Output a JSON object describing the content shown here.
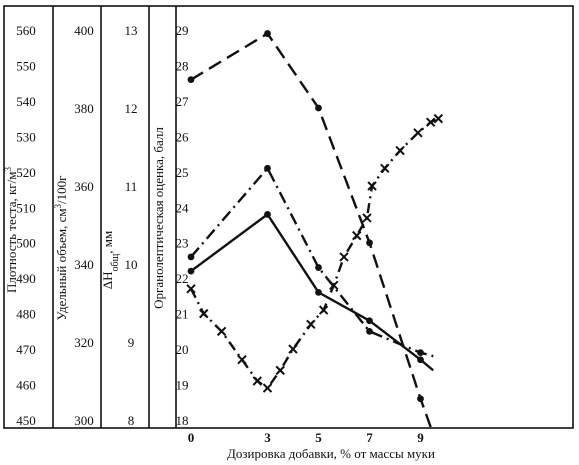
{
  "chart_data": {
    "type": "line",
    "xlabel": "Дозировка добавки, % от массы муки",
    "x_ticks": [
      "0",
      "3",
      "5",
      "7",
      "9"
    ],
    "xlim": [
      0,
      9.9
    ],
    "left_axes": [
      {
        "key": "density",
        "label": "Плотность теста, кг/м",
        "label_sup": "3",
        "min": 450,
        "max": 560,
        "ticks": [
          450,
          460,
          470,
          480,
          490,
          500,
          510,
          520,
          530,
          540,
          550,
          560
        ]
      },
      {
        "key": "volume",
        "label": "Удельный объем, см",
        "label_sup": "3",
        "label_tail": "/100г",
        "min": 300,
        "max": 400,
        "ticks": [
          300,
          320,
          340,
          360,
          380,
          400
        ]
      },
      {
        "key": "dh",
        "label": "ΔH",
        "label_sub": "общ",
        "label_tail": ", мм",
        "min": 8,
        "max": 13,
        "ticks": [
          8,
          9,
          10,
          11,
          12,
          13
        ]
      }
    ],
    "y_axis": {
      "label": "Органолептическая оценка, балл",
      "min": 18,
      "max": 29,
      "ticks": [
        18,
        19,
        20,
        21,
        22,
        23,
        24,
        25,
        26,
        27,
        28,
        29
      ]
    },
    "series": [
      {
        "style": "dashed",
        "marker": "dot",
        "x": [
          0,
          3,
          5,
          7,
          9,
          9.4
        ],
        "y": [
          27.6,
          28.9,
          26.8,
          23.0,
          18.6,
          17.8
        ]
      },
      {
        "style": "dash-dot",
        "marker": "dot",
        "x": [
          0,
          3,
          5,
          7,
          9,
          9.5
        ],
        "y": [
          22.6,
          25.1,
          22.3,
          20.5,
          19.9,
          19.8
        ]
      },
      {
        "style": "solid",
        "marker": "dot",
        "x": [
          0,
          3,
          5,
          7,
          9,
          9.5
        ],
        "y": [
          22.2,
          23.8,
          21.6,
          20.8,
          19.7,
          19.4
        ]
      },
      {
        "style": "dash-dot-x",
        "marker": "x",
        "x": [
          0,
          0.5,
          1.2,
          2,
          2.6,
          3,
          3.5,
          4,
          4.7,
          5.2,
          5.6,
          6,
          6.5,
          6.9,
          7.1,
          7.6,
          8.2,
          8.9,
          9.4,
          9.7
        ],
        "y": [
          21.7,
          21.0,
          20.5,
          19.7,
          19.1,
          18.9,
          19.4,
          20.0,
          20.7,
          21.1,
          21.8,
          22.6,
          23.2,
          23.7,
          24.6,
          25.1,
          25.6,
          26.1,
          26.4,
          26.5
        ]
      }
    ],
    "grid": false
  }
}
